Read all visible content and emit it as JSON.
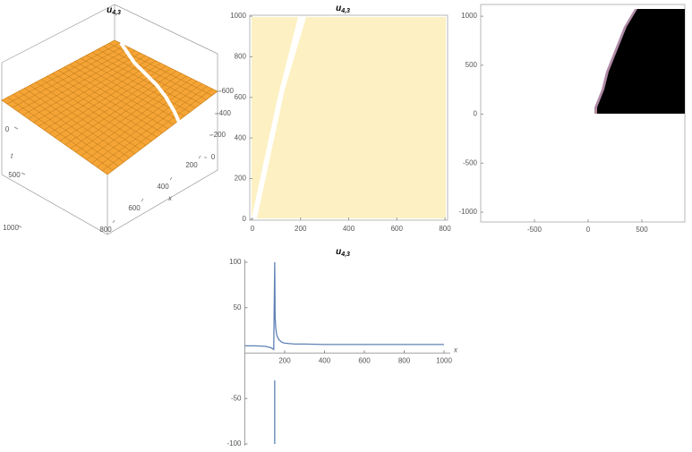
{
  "chart_data": [
    {
      "type": "surface3d",
      "title": "u",
      "title_sub": "4,3",
      "x_label": "x",
      "y_label": "t",
      "xticks": [
        200,
        400,
        600,
        800
      ],
      "yticks": [
        0,
        500,
        1000
      ],
      "zticks": [
        -600,
        -400,
        -200,
        0
      ],
      "color": "#f5a535"
    },
    {
      "type": "contour",
      "title": "u",
      "title_sub": "4,3",
      "xlim": [
        -11,
        811
      ],
      "ylim": [
        -5,
        1005
      ],
      "xticks": [
        0,
        200,
        400,
        600,
        800
      ],
      "yticks": [
        0,
        200,
        400,
        600,
        800,
        1000
      ],
      "color": "#fdf1c3"
    },
    {
      "type": "density",
      "xlim": [
        -1000,
        900
      ],
      "ylim": [
        -1100,
        1120
      ],
      "xticks": [
        -500,
        0,
        500
      ],
      "yticks": [
        -1000,
        -500,
        0,
        500,
        1000
      ],
      "color": "#000000"
    },
    {
      "type": "line",
      "title": "u",
      "title_sub": "4,3",
      "x_label": "x",
      "xlim": [
        0,
        1000
      ],
      "ylim": [
        -100,
        100
      ],
      "xticks": [
        200,
        400,
        600,
        800,
        1000
      ],
      "yticks": [
        -100,
        -50,
        50,
        100
      ],
      "color": "#5e81b5",
      "x": [
        0,
        50,
        100,
        130,
        145,
        150,
        152,
        155,
        160,
        170,
        185,
        200,
        250,
        300,
        400,
        600,
        800,
        1000,
        150,
        150,
        150
      ],
      "values": [
        8,
        8,
        7.5,
        6,
        4,
        100,
        40,
        28,
        20,
        15,
        12,
        11,
        10,
        10,
        9.5,
        9.5,
        9.5,
        9.5,
        null,
        -100,
        -30
      ]
    }
  ]
}
